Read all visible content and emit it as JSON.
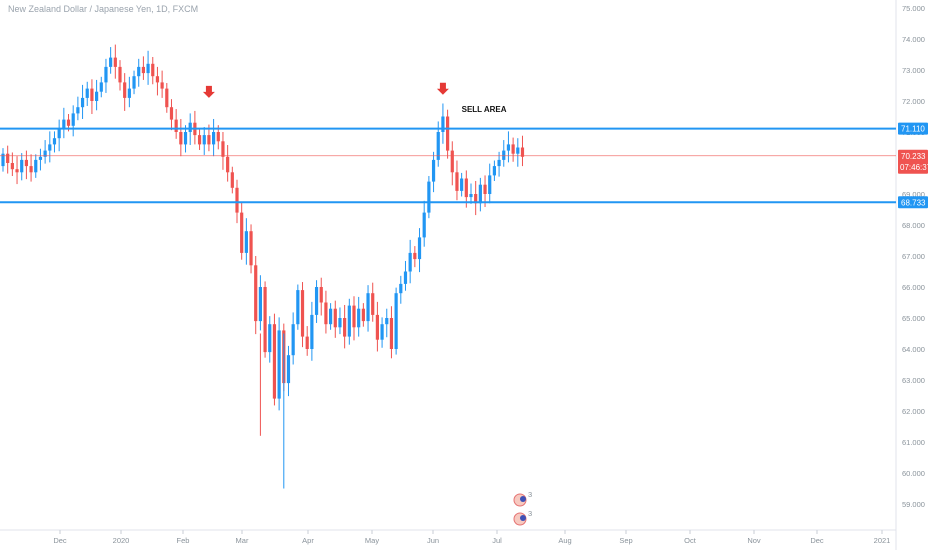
{
  "header": {
    "symbol_title": "New Zealand Dollar / Japanese Yen, 1D, FXCM"
  },
  "colors": {
    "up": "#2196f3",
    "down": "#ef5350",
    "level_line": "#2196f3",
    "price_line": "#ef5350",
    "arrow": "#e53935",
    "axis_bg": "#ffffff",
    "axis_text": "#8a939b"
  },
  "chart_data": {
    "type": "candlestick",
    "title": "New Zealand Dollar / Japanese Yen, 1D, FXCM",
    "ylim": [
      58.25,
      75.3
    ],
    "y_ticks": [
      "75.000",
      "74.000",
      "73.000",
      "72.000",
      "71.000",
      "70.000",
      "69.000",
      "68.000",
      "67.000",
      "66.000",
      "65.000",
      "64.000",
      "63.000",
      "62.000",
      "61.000",
      "60.000",
      "59.000"
    ],
    "x_ticks": [
      "Dec",
      "2020",
      "Feb",
      "Mar",
      "Apr",
      "May",
      "Jun",
      "Jul",
      "Aug",
      "Sep",
      "Oct",
      "Nov",
      "Dec",
      "2021"
    ],
    "candle_closes": [
      70.3,
      70.0,
      69.8,
      69.7,
      70.1,
      69.9,
      69.7,
      70.1,
      70.2,
      70.4,
      70.6,
      70.8,
      71.1,
      71.4,
      71.2,
      71.6,
      71.8,
      72.1,
      72.4,
      72.0,
      72.3,
      72.6,
      73.1,
      73.4,
      73.1,
      72.6,
      72.1,
      72.4,
      72.8,
      73.1,
      72.9,
      73.2,
      72.8,
      72.6,
      72.4,
      71.8,
      71.4,
      71.0,
      70.6,
      71.0,
      71.3,
      70.9,
      70.6,
      70.9,
      70.6,
      71.0,
      70.7,
      70.2,
      69.7,
      69.2,
      68.4,
      67.1,
      67.8,
      66.7,
      64.9,
      66.0,
      63.9,
      64.8,
      62.4,
      64.6,
      62.9,
      63.8,
      64.8,
      65.9,
      64.4,
      64.0,
      65.1,
      66.0,
      65.5,
      64.8,
      65.3,
      64.7,
      65.0,
      64.4,
      65.4,
      64.7,
      65.3,
      64.9,
      65.8,
      65.1,
      64.3,
      64.8,
      65.0,
      64.0,
      65.8,
      66.1,
      66.5,
      67.1,
      66.9,
      67.6,
      68.4,
      69.4,
      70.1,
      71.0,
      71.5,
      70.4,
      69.7,
      69.1,
      69.5,
      68.9,
      69.0,
      68.7,
      69.3,
      69.0,
      69.6,
      69.9,
      70.1,
      70.4,
      70.6,
      70.3,
      70.5,
      70.2
    ],
    "horizontal_levels": [
      {
        "label": "71.110",
        "value": 71.11,
        "style": "thick"
      },
      {
        "label": "68.733",
        "value": 68.733,
        "style": "thick"
      }
    ],
    "last_price": {
      "value": 70.233,
      "label": "70.233",
      "countdown": "07:46:37"
    },
    "annotations": [
      {
        "type": "arrow-down",
        "candle_index": 44,
        "price": 72.1
      },
      {
        "type": "arrow-down",
        "candle_index": 94,
        "price": 72.2
      },
      {
        "type": "text",
        "text": "SELL AREA",
        "candle_index": 98,
        "price": 71.65
      }
    ],
    "grid": false
  },
  "event_markers": [
    {
      "name": "economic-event-marker-top",
      "count": "3"
    },
    {
      "name": "economic-event-marker-bottom",
      "count": "3"
    }
  ]
}
